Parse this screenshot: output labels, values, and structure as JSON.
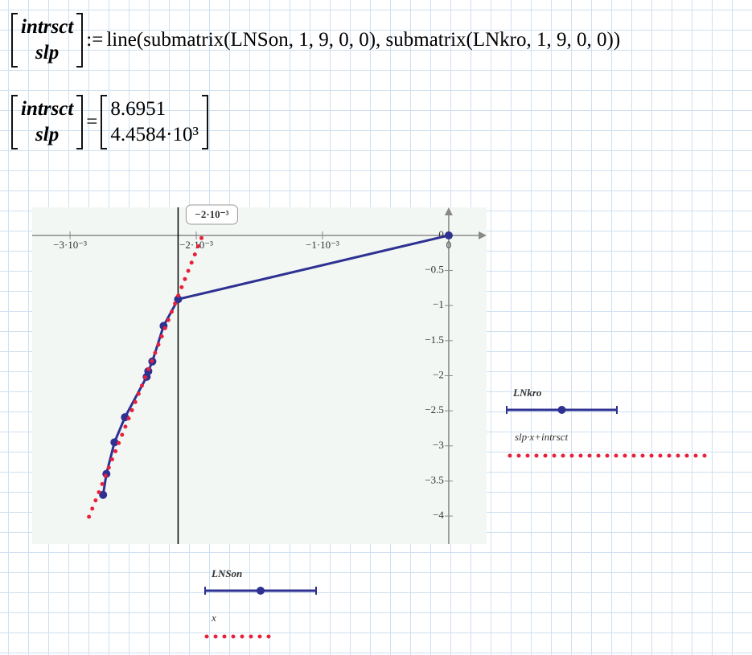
{
  "expressions": [
    {
      "lhs": [
        "intrsct",
        "slp"
      ],
      "op": ":=",
      "rhs": "line(submatrix(LNSon, 1, 9, 0, 0), submatrix(LNkro, 1, 9, 0, 0))"
    },
    {
      "lhs": [
        "intrsct",
        "slp"
      ],
      "op": "=",
      "rhs": [
        "8.6951",
        "4.4584·10³"
      ]
    }
  ],
  "chart_data": {
    "type": "line",
    "xlim": [
      -0.0033,
      0.0003
    ],
    "xticks": [
      {
        "value": -0.003,
        "label": "−3·10⁻³"
      },
      {
        "value": -0.002,
        "label": "−2·10⁻³"
      },
      {
        "value": -0.001,
        "label": "−1·10⁻³"
      },
      0
    ],
    "ylim": [
      -4.4,
      0.4
    ],
    "yticks": [
      0,
      {
        "value": -0.5,
        "label": "−0.5"
      },
      {
        "value": -1,
        "label": "−1"
      },
      {
        "value": -1.5,
        "label": "−1.5"
      },
      {
        "value": -2,
        "label": "−2"
      },
      {
        "value": -2.5,
        "label": "−2.5"
      },
      {
        "value": -3,
        "label": "−3"
      },
      {
        "value": -3.5,
        "label": "−3.5"
      },
      {
        "value": -4,
        "label": "−4"
      }
    ],
    "marker": {
      "value": -0.002144,
      "label": "−2·10⁻³"
    },
    "series": [
      {
        "name": "LNkro",
        "x_name": "LNSon",
        "color": "#2e3192",
        "x": [
          0,
          -0.002144,
          -0.002259,
          -0.002348,
          -0.00238,
          -0.002393,
          -0.002565,
          -0.002648,
          -0.002712,
          -0.002738
        ],
        "values": [
          0,
          -0.91,
          -1.29,
          -1.797,
          -1.935,
          -2.016,
          -2.592,
          -2.949,
          -3.399,
          -3.698
        ]
      },
      {
        "name": "slp·x+intrsct",
        "x_name": "x",
        "color": "#e8203a",
        "x": [
          -0.00285,
          -0.0028,
          -0.00275,
          -0.0027,
          -0.00265,
          -0.0026,
          -0.00255,
          -0.0025,
          -0.00245,
          -0.0024,
          -0.00235,
          -0.0023,
          -0.00225,
          -0.0022,
          -0.00215,
          -0.0021,
          -0.00205,
          -0.002,
          -0.00195
        ],
        "values": [
          -4.011,
          -3.788,
          -3.566,
          -3.343,
          -3.12,
          -2.897,
          -2.674,
          -2.451,
          -2.228,
          -2.005,
          -1.782,
          -1.559,
          -1.336,
          -1.113,
          -0.891,
          -0.668,
          -0.445,
          -0.222,
          0.001
        ]
      }
    ]
  }
}
